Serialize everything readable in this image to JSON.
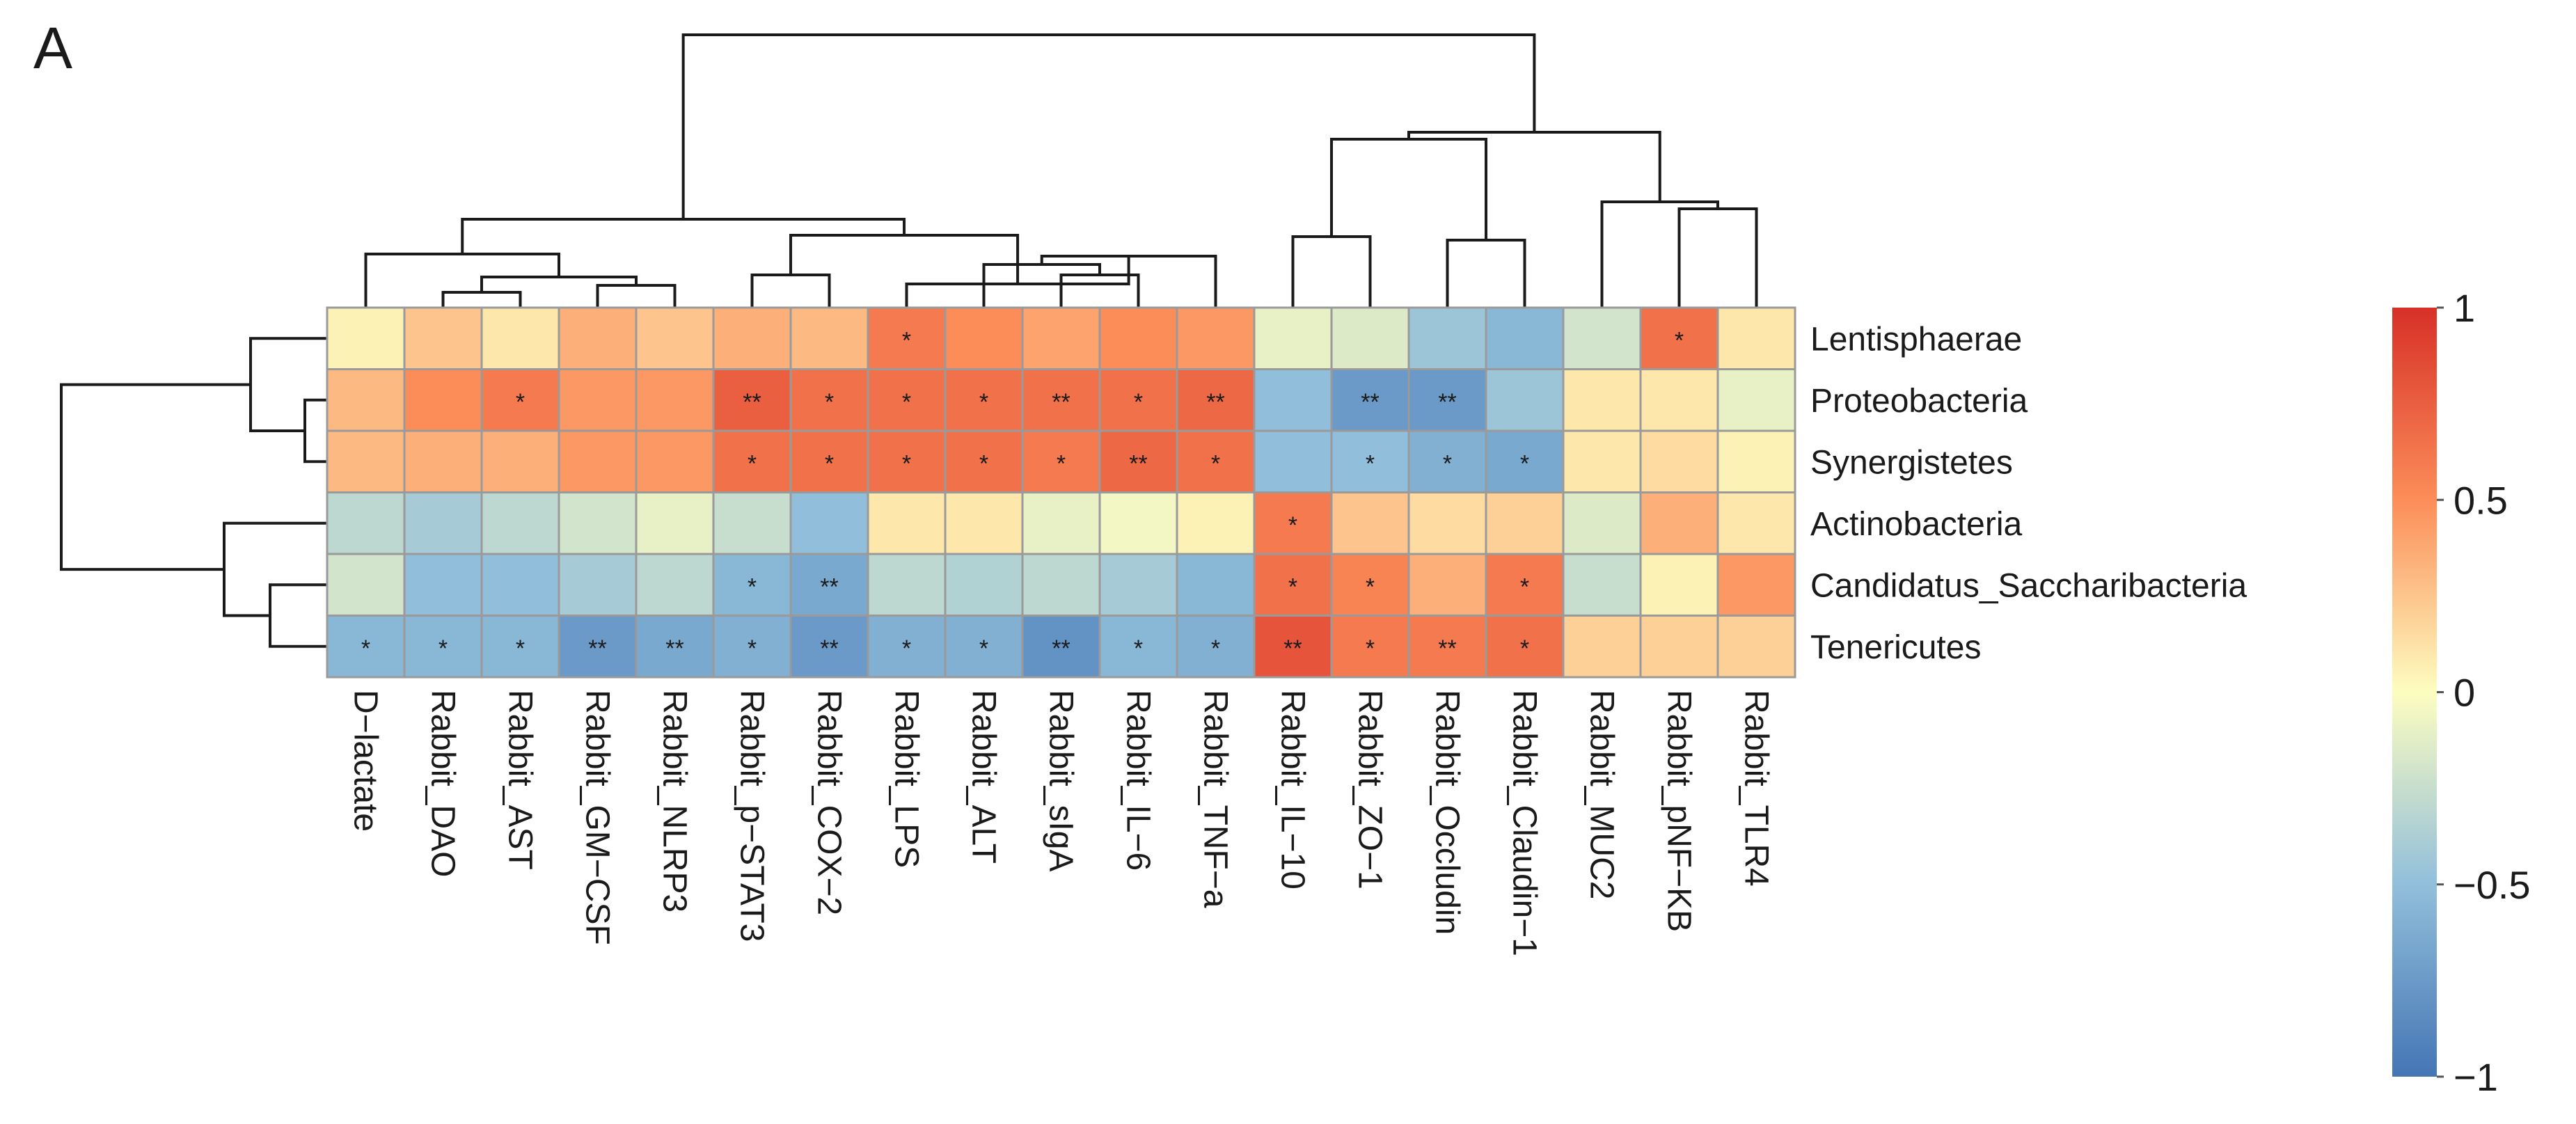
{
  "panel_label": "A",
  "chart_data": {
    "type": "heatmap",
    "title": "",
    "rows": [
      "Lentisphaerae",
      "Proteobacteria",
      "Synergistetes",
      "Actinobacteria",
      "Candidatus_Saccharibacteria",
      "Tenericutes"
    ],
    "columns": [
      "D−lactate",
      "Rabbit_DAO",
      "Rabbit_AST",
      "Rabbit_GM−CSF",
      "Rabbit_NLRP3",
      "Rabbit_p−STAT3",
      "Rabbit_COX−2",
      "Rabbit_LPS",
      "Rabbit_ALT",
      "Rabbit_sIgA",
      "Rabbit_IL−6",
      "Rabbit_TNF−a",
      "Rabbit_IL−10",
      "Rabbit_ZO−1",
      "Rabbit_Occludin",
      "Rabbit_Claudin−1",
      "Rabbit_MUC2",
      "Rabbit_pNF−KB",
      "Rabbit_TLR4"
    ],
    "values": [
      [
        0.05,
        0.25,
        0.1,
        0.35,
        0.25,
        0.35,
        0.3,
        0.6,
        0.5,
        0.4,
        0.5,
        0.45,
        -0.1,
        -0.15,
        -0.45,
        -0.55,
        -0.2,
        0.65,
        0.1
      ],
      [
        0.3,
        0.5,
        0.6,
        0.45,
        0.45,
        0.75,
        0.65,
        0.65,
        0.65,
        0.65,
        0.65,
        0.7,
        -0.5,
        -0.75,
        -0.75,
        -0.45,
        0.1,
        0.1,
        -0.1
      ],
      [
        0.3,
        0.35,
        0.35,
        0.45,
        0.45,
        0.65,
        0.65,
        0.65,
        0.65,
        0.6,
        0.7,
        0.65,
        -0.5,
        -0.5,
        -0.6,
        -0.65,
        0.1,
        0.15,
        0.05
      ],
      [
        -0.3,
        -0.4,
        -0.3,
        -0.2,
        -0.1,
        -0.25,
        -0.5,
        0.1,
        0.1,
        -0.1,
        -0.05,
        0.05,
        0.6,
        0.25,
        0.15,
        0.2,
        -0.15,
        0.35,
        0.1
      ],
      [
        -0.2,
        -0.5,
        -0.5,
        -0.4,
        -0.3,
        -0.55,
        -0.65,
        -0.3,
        -0.35,
        -0.3,
        -0.4,
        -0.55,
        0.65,
        0.55,
        0.35,
        0.6,
        -0.25,
        0.05,
        0.45
      ],
      [
        -0.55,
        -0.55,
        -0.55,
        -0.75,
        -0.65,
        -0.6,
        -0.75,
        -0.6,
        -0.6,
        -0.8,
        -0.55,
        -0.6,
        0.8,
        0.6,
        0.6,
        0.65,
        0.2,
        0.2,
        0.2
      ]
    ],
    "significance": [
      [
        "",
        "",
        "",
        "",
        "",
        "",
        "",
        "*",
        "",
        "",
        "",
        "",
        "",
        "",
        "",
        "",
        "",
        "*",
        ""
      ],
      [
        "",
        "",
        "*",
        "",
        "",
        "**",
        "*",
        "*",
        "*",
        "**",
        "*",
        "**",
        "",
        "**",
        "**",
        "",
        "",
        "",
        ""
      ],
      [
        "",
        "",
        "",
        "",
        "",
        "*",
        "*",
        "*",
        "*",
        "*",
        "**",
        "*",
        "",
        "*",
        "*",
        "*",
        "",
        "",
        ""
      ],
      [
        "",
        "",
        "",
        "",
        "",
        "",
        "",
        "",
        "",
        "",
        "",
        "",
        "*",
        "",
        "",
        "",
        "",
        "",
        ""
      ],
      [
        "",
        "",
        "",
        "",
        "",
        "*",
        "**",
        "",
        "",
        "",
        "",
        "",
        "*",
        "*",
        "",
        "*",
        "",
        "",
        ""
      ],
      [
        "*",
        "*",
        "*",
        "**",
        "**",
        "*",
        "**",
        "*",
        "*",
        "**",
        "*",
        "*",
        "**",
        "*",
        "**",
        "*",
        "",
        "",
        ""
      ]
    ],
    "colorbar": {
      "range": [
        -1,
        1
      ],
      "ticks": [
        1,
        0.5,
        0,
        -0.5,
        -1
      ],
      "tick_labels": [
        "1",
        "0.5",
        "0",
        "−0.5",
        "−1"
      ],
      "colors": [
        "#4575b4",
        "#91bfdb",
        "#fdfdc0",
        "#fc8d59",
        "#d73027"
      ]
    },
    "col_dendrogram": {
      "merges": [
        [
          1,
          2
        ],
        [
          3,
          4
        ],
        [
          -1,
          -2
        ],
        [
          0,
          3
        ],
        [
          6,
          7
        ],
        [
          9,
          10
        ],
        [
          5,
          6
        ],
        [
          8,
          11
        ],
        [
          12,
          13
        ],
        [
          10,
          14
        ],
        [
          -6,
          -8
        ],
        [
          17,
          18
        ],
        [
          14,
          15
        ],
        [
          16,
          22
        ],
        [
          13,
          23
        ],
        [
          -3,
          -4
        ],
        [
          21,
          24
        ],
        [
          4,
          -7
        ],
        [
          -12,
          -14
        ],
        [
          -5,
          -10
        ],
        [
          -9,
          -11
        ],
        [
          -13,
          -16
        ],
        [
          -17,
          -18
        ],
        [
          -15,
          -19
        ],
        [
          -20,
          -22
        ],
        [
          -21,
          -23
        ],
        [
          -24,
          -25
        ],
        [
          -26,
          -27
        ]
      ],
      "note": "structure reproduced in drawing script"
    },
    "row_dendrogram": {
      "note": "structure reproduced in drawing script"
    }
  }
}
